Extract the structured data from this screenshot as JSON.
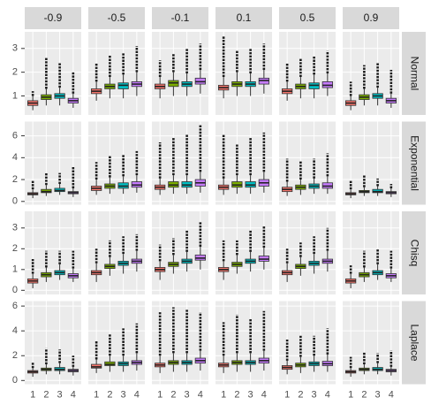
{
  "chart_data": {
    "type": "boxplot",
    "columns": [
      "-0.9",
      "-0.5",
      "-0.1",
      "0.1",
      "0.5",
      "0.9"
    ],
    "categories": [
      "1",
      "2",
      "3",
      "4"
    ],
    "colors": [
      "#F8766D",
      "#7CAE00",
      "#00BFC4",
      "#C77CFF"
    ],
    "rows": [
      {
        "name": "Normal",
        "ylim": [
          0.2,
          3.7
        ],
        "yticks": [
          1,
          2,
          3
        ],
        "panels": [
          [
            [
              0.4,
              0.6,
              0.7,
              0.8,
              1.0,
              1.2
            ],
            [
              0.6,
              0.85,
              0.95,
              1.05,
              1.3,
              2.6
            ],
            [
              0.6,
              0.9,
              1.0,
              1.1,
              1.35,
              2.4
            ],
            [
              0.5,
              0.7,
              0.8,
              0.9,
              1.1,
              2.0
            ]
          ],
          [
            [
              0.8,
              1.1,
              1.2,
              1.3,
              1.6,
              2.4
            ],
            [
              0.9,
              1.3,
              1.4,
              1.5,
              1.8,
              2.7
            ],
            [
              0.9,
              1.3,
              1.45,
              1.55,
              1.9,
              2.8
            ],
            [
              1.0,
              1.4,
              1.5,
              1.6,
              2.0,
              3.1
            ]
          ],
          [
            [
              0.9,
              1.3,
              1.4,
              1.5,
              1.8,
              2.5
            ],
            [
              1.0,
              1.4,
              1.55,
              1.65,
              2.0,
              2.8
            ],
            [
              1.0,
              1.4,
              1.5,
              1.6,
              1.95,
              3.0
            ],
            [
              1.1,
              1.5,
              1.6,
              1.75,
              2.1,
              3.2
            ]
          ],
          [
            [
              0.9,
              1.25,
              1.35,
              1.45,
              1.8,
              3.5
            ],
            [
              1.0,
              1.4,
              1.5,
              1.6,
              2.0,
              2.9
            ],
            [
              1.0,
              1.4,
              1.5,
              1.6,
              1.95,
              3.0
            ],
            [
              1.1,
              1.5,
              1.65,
              1.75,
              2.1,
              3.2
            ]
          ],
          [
            [
              0.8,
              1.1,
              1.2,
              1.3,
              1.6,
              2.4
            ],
            [
              0.9,
              1.3,
              1.4,
              1.5,
              1.8,
              2.6
            ],
            [
              0.9,
              1.3,
              1.45,
              1.55,
              1.9,
              2.7
            ],
            [
              1.0,
              1.35,
              1.45,
              1.6,
              1.95,
              2.9
            ]
          ],
          [
            [
              0.4,
              0.6,
              0.7,
              0.8,
              1.0,
              1.6
            ],
            [
              0.6,
              0.85,
              0.95,
              1.05,
              1.3,
              2.3
            ],
            [
              0.6,
              0.9,
              1.0,
              1.1,
              1.35,
              2.4
            ],
            [
              0.5,
              0.7,
              0.8,
              0.9,
              1.1,
              2.1
            ]
          ]
        ]
      },
      {
        "name": "Exponential",
        "ylim": [
          -0.3,
          7.3
        ],
        "yticks": [
          0,
          2,
          4,
          6
        ],
        "panels": [
          [
            [
              0.3,
              0.6,
              0.7,
              0.8,
              1.1,
              1.9
            ],
            [
              0.5,
              0.8,
              0.9,
              1.1,
              1.5,
              2.6
            ],
            [
              0.6,
              0.9,
              1.0,
              1.2,
              1.6,
              2.6
            ],
            [
              0.4,
              0.7,
              0.8,
              0.9,
              1.2,
              3.2
            ]
          ],
          [
            [
              0.6,
              1.0,
              1.2,
              1.4,
              2.0,
              3.6
            ],
            [
              0.7,
              1.2,
              1.4,
              1.6,
              2.2,
              4.2
            ],
            [
              0.7,
              1.2,
              1.4,
              1.7,
              2.3,
              4.3
            ],
            [
              0.8,
              1.3,
              1.5,
              1.8,
              2.4,
              4.6
            ]
          ],
          [
            [
              0.6,
              1.1,
              1.3,
              1.5,
              2.1,
              5.4
            ],
            [
              0.7,
              1.3,
              1.5,
              1.8,
              2.4,
              5.9
            ],
            [
              0.7,
              1.3,
              1.5,
              1.8,
              2.4,
              6.1
            ],
            [
              0.8,
              1.4,
              1.7,
              2.0,
              2.7,
              7.0
            ]
          ],
          [
            [
              0.6,
              1.1,
              1.3,
              1.5,
              2.1,
              6.1
            ],
            [
              0.7,
              1.3,
              1.5,
              1.8,
              2.4,
              5.2
            ],
            [
              0.7,
              1.3,
              1.5,
              1.8,
              2.4,
              5.8
            ],
            [
              0.8,
              1.4,
              1.7,
              2.0,
              2.7,
              6.3
            ]
          ],
          [
            [
              0.5,
              0.9,
              1.1,
              1.3,
              1.8,
              3.9
            ],
            [
              0.6,
              1.1,
              1.3,
              1.5,
              2.0,
              3.7
            ],
            [
              0.7,
              1.2,
              1.4,
              1.6,
              2.1,
              3.9
            ],
            [
              0.7,
              1.2,
              1.4,
              1.7,
              2.3,
              4.4
            ]
          ],
          [
            [
              0.3,
              0.6,
              0.7,
              0.8,
              1.1,
              1.9
            ],
            [
              0.5,
              0.8,
              0.9,
              1.0,
              1.3,
              2.4
            ],
            [
              0.5,
              0.8,
              0.9,
              1.1,
              1.4,
              2.1
            ],
            [
              0.4,
              0.7,
              0.8,
              0.9,
              1.2,
              1.6
            ]
          ]
        ]
      },
      {
        "name": "Chisq",
        "ylim": [
          -0.2,
          3.8
        ],
        "yticks": [
          0,
          1,
          2,
          3
        ],
        "panels": [
          [
            [
              0.1,
              0.35,
              0.45,
              0.55,
              0.8,
              1.5
            ],
            [
              0.4,
              0.65,
              0.75,
              0.85,
              1.1,
              1.9
            ],
            [
              0.5,
              0.75,
              0.85,
              0.95,
              1.25,
              1.9
            ],
            [
              0.4,
              0.6,
              0.7,
              0.8,
              1.05,
              1.9
            ]
          ],
          [
            [
              0.4,
              0.75,
              0.85,
              0.95,
              1.3,
              2.0
            ],
            [
              0.7,
              1.05,
              1.15,
              1.25,
              1.6,
              2.4
            ],
            [
              0.8,
              1.2,
              1.3,
              1.4,
              1.75,
              2.6
            ],
            [
              0.9,
              1.3,
              1.4,
              1.5,
              1.9,
              2.7
            ]
          ],
          [
            [
              0.5,
              0.9,
              1.0,
              1.1,
              1.4,
              2.2
            ],
            [
              0.8,
              1.15,
              1.25,
              1.35,
              1.7,
              2.5
            ],
            [
              0.9,
              1.3,
              1.4,
              1.5,
              1.85,
              2.9
            ],
            [
              1.0,
              1.45,
              1.55,
              1.7,
              2.1,
              3.3
            ]
          ],
          [
            [
              0.5,
              0.9,
              1.0,
              1.1,
              1.4,
              2.4
            ],
            [
              0.8,
              1.15,
              1.25,
              1.35,
              1.7,
              2.4
            ],
            [
              0.9,
              1.3,
              1.4,
              1.5,
              1.85,
              2.9
            ],
            [
              1.0,
              1.4,
              1.5,
              1.65,
              2.05,
              3.1
            ]
          ],
          [
            [
              0.4,
              0.75,
              0.85,
              0.95,
              1.3,
              2.0
            ],
            [
              0.7,
              1.05,
              1.15,
              1.25,
              1.6,
              2.3
            ],
            [
              0.8,
              1.2,
              1.3,
              1.4,
              1.75,
              2.6
            ],
            [
              0.9,
              1.3,
              1.4,
              1.5,
              1.9,
              3.0
            ]
          ],
          [
            [
              0.1,
              0.35,
              0.45,
              0.55,
              0.8,
              1.2
            ],
            [
              0.4,
              0.65,
              0.75,
              0.85,
              1.1,
              1.9
            ],
            [
              0.5,
              0.75,
              0.85,
              0.95,
              1.25,
              2.0
            ],
            [
              0.4,
              0.6,
              0.7,
              0.8,
              1.05,
              1.9
            ]
          ]
        ]
      },
      {
        "name": "Laplace",
        "ylim": [
          -0.3,
          6.4
        ],
        "yticks": [
          0,
          2,
          4,
          6
        ],
        "panels": [
          [
            [
              0.3,
              0.6,
              0.7,
              0.8,
              1.0,
              1.5
            ],
            [
              0.5,
              0.8,
              0.9,
              1.0,
              1.3,
              2.6
            ],
            [
              0.5,
              0.8,
              0.9,
              1.05,
              1.4,
              2.5
            ],
            [
              0.4,
              0.7,
              0.8,
              0.9,
              1.1,
              2.0
            ]
          ],
          [
            [
              0.6,
              1.0,
              1.1,
              1.3,
              1.7,
              3.2
            ],
            [
              0.7,
              1.2,
              1.3,
              1.5,
              2.0,
              3.8
            ],
            [
              0.7,
              1.2,
              1.35,
              1.5,
              2.0,
              4.2
            ],
            [
              0.8,
              1.3,
              1.45,
              1.6,
              2.2,
              4.6
            ]
          ],
          [
            [
              0.6,
              1.1,
              1.25,
              1.4,
              2.0,
              5.5
            ],
            [
              0.7,
              1.3,
              1.45,
              1.6,
              2.2,
              5.9
            ],
            [
              0.7,
              1.3,
              1.45,
              1.6,
              2.2,
              5.7
            ],
            [
              0.8,
              1.4,
              1.6,
              1.8,
              2.4,
              5.5
            ]
          ],
          [
            [
              0.6,
              1.1,
              1.25,
              1.4,
              2.0,
              4.7
            ],
            [
              0.7,
              1.3,
              1.45,
              1.6,
              2.2,
              5.3
            ],
            [
              0.7,
              1.3,
              1.45,
              1.6,
              2.2,
              5.0
            ],
            [
              0.8,
              1.4,
              1.6,
              1.8,
              2.4,
              5.6
            ]
          ],
          [
            [
              0.5,
              0.9,
              1.05,
              1.2,
              1.6,
              3.3
            ],
            [
              0.6,
              1.1,
              1.25,
              1.4,
              1.9,
              3.6
            ],
            [
              0.7,
              1.2,
              1.35,
              1.5,
              2.0,
              3.6
            ],
            [
              0.7,
              1.2,
              1.35,
              1.55,
              2.1,
              4.2
            ]
          ],
          [
            [
              0.3,
              0.6,
              0.7,
              0.8,
              1.0,
              1.9
            ],
            [
              0.5,
              0.8,
              0.9,
              1.0,
              1.3,
              2.3
            ],
            [
              0.5,
              0.8,
              0.9,
              1.05,
              1.4,
              2.2
            ],
            [
              0.4,
              0.7,
              0.8,
              0.9,
              1.1,
              2.4
            ]
          ]
        ]
      }
    ]
  }
}
